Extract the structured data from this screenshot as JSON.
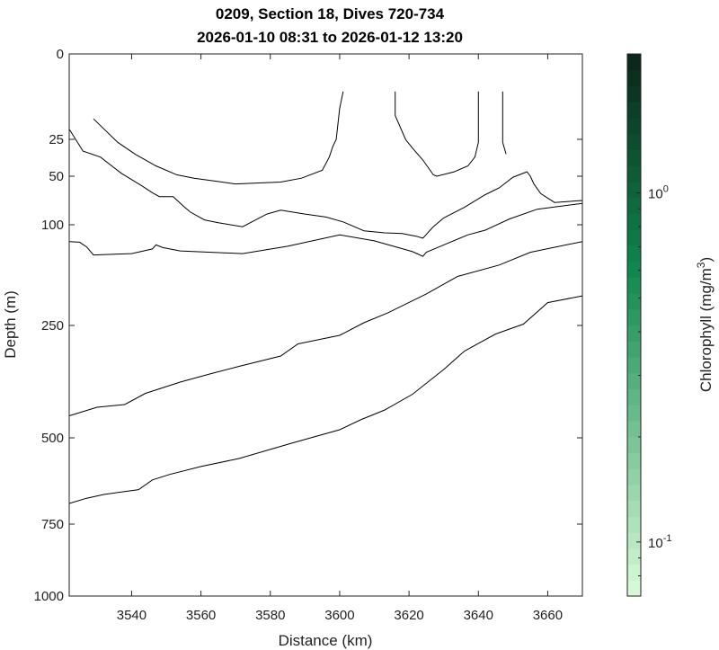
{
  "chart_data": {
    "type": "contour",
    "title": "0209, Section 18, Dives 720-734",
    "subtitle": "2026-01-10 08:31 to 2026-01-12 13:20",
    "xlabel": "Distance (km)",
    "ylabel": "Depth (m)",
    "xlim": [
      3522,
      3670
    ],
    "x_ticks": [
      "3540",
      "3560",
      "3580",
      "3600",
      "3620",
      "3640",
      "3660"
    ],
    "x_tick_values": [
      3540,
      3560,
      3580,
      3600,
      3620,
      3640,
      3660
    ],
    "y_ticks": [
      "0",
      "25",
      "50",
      "100",
      "250",
      "500",
      "750",
      "1000"
    ],
    "y_tick_values": [
      0,
      25,
      50,
      100,
      250,
      500,
      750,
      1000
    ],
    "y_scale": "stretched (nonlinear)",
    "colorbar": {
      "label": "Chlorophyll (mg/m",
      "label_sup": "3",
      "label_end": ")",
      "scale": "log",
      "range": [
        0.07,
        2.5
      ],
      "ticks": [
        {
          "value": 1,
          "base": "10",
          "exp": "0"
        },
        {
          "value": 0.1,
          "base": "10",
          "exp": "-1"
        }
      ],
      "color_low": "#dcfbd9",
      "color_mid": "#10884e",
      "color_high": "#0c2418"
    },
    "contours": [
      {
        "segments": [
          [
            [
              3529,
              19
            ],
            [
              3536,
              27
            ],
            [
              3541,
              35
            ],
            [
              3547,
              43
            ],
            [
              3553,
              49
            ],
            [
              3558,
              52
            ],
            [
              3564,
              55
            ],
            [
              3570,
              58
            ],
            [
              3576,
              57
            ],
            [
              3583,
              56
            ],
            [
              3589,
              52
            ],
            [
              3595,
              46
            ],
            [
              3597,
              37
            ],
            [
              3598,
              30
            ],
            [
              3599,
              25
            ],
            [
              3600,
              16
            ],
            [
              3601,
              11
            ]
          ],
          [
            [
              3616,
              11
            ],
            [
              3616,
              18
            ],
            [
              3619,
              25
            ],
            [
              3621,
              31
            ],
            [
              3624,
              39
            ],
            [
              3627,
              49
            ],
            [
              3628,
              50
            ],
            [
              3633,
              47
            ],
            [
              3637,
              43
            ],
            [
              3639,
              37
            ],
            [
              3640,
              27
            ],
            [
              3640,
              11
            ]
          ],
          [
            [
              3647,
              11
            ],
            [
              3647,
              27
            ],
            [
              3648,
              35
            ]
          ]
        ]
      },
      {
        "segments": [
          [
            [
              3522,
              22
            ],
            [
              3526,
              33
            ],
            [
              3531,
              37
            ],
            [
              3537,
              48
            ],
            [
              3543,
              60
            ],
            [
              3546,
              67
            ],
            [
              3548,
              71
            ],
            [
              3552,
              71
            ],
            [
              3555,
              81
            ],
            [
              3557,
              87
            ],
            [
              3561,
              95
            ],
            [
              3565,
              98
            ],
            [
              3572,
              103
            ],
            [
              3579,
              89
            ],
            [
              3583,
              85
            ],
            [
              3590,
              89
            ],
            [
              3596,
              92
            ],
            [
              3601,
              97
            ],
            [
              3607,
              109
            ],
            [
              3613,
              112
            ],
            [
              3618,
              113
            ],
            [
              3622,
              117
            ],
            [
              3624,
              120
            ],
            [
              3627,
              103
            ],
            [
              3630,
              93
            ],
            [
              3636,
              82
            ],
            [
              3642,
              69
            ],
            [
              3646,
              62
            ],
            [
              3650,
              51
            ],
            [
              3654,
              47
            ],
            [
              3655,
              50
            ],
            [
              3656,
              58
            ],
            [
              3658,
              68
            ],
            [
              3662,
              77
            ],
            [
              3670,
              75
            ]
          ]
        ]
      },
      {
        "segments": [
          [
            [
              3522,
              125
            ],
            [
              3525,
              126
            ],
            [
              3527,
              133
            ],
            [
              3529,
              145
            ],
            [
              3540,
              143
            ],
            [
              3546,
              136
            ],
            [
              3547,
              130
            ],
            [
              3549,
              134
            ],
            [
              3554,
              139
            ],
            [
              3572,
              143
            ],
            [
              3585,
              132
            ],
            [
              3600,
              115
            ],
            [
              3610,
              124
            ],
            [
              3621,
              140
            ],
            [
              3624,
              147
            ],
            [
              3625,
              141
            ],
            [
              3630,
              130
            ],
            [
              3637,
              115
            ],
            [
              3642,
              108
            ],
            [
              3649,
              94
            ],
            [
              3657,
              84
            ],
            [
              3670,
              78
            ]
          ]
        ]
      },
      {
        "segments": [
          [
            [
              3522,
              451
            ],
            [
              3530,
              432
            ],
            [
              3538,
              426
            ],
            [
              3544,
              401
            ],
            [
              3554,
              376
            ],
            [
              3563,
              357
            ],
            [
              3571,
              341
            ],
            [
              3583,
              318
            ],
            [
              3588,
              291
            ],
            [
              3600,
              272
            ],
            [
              3607,
              246
            ],
            [
              3614,
              231
            ],
            [
              3625,
              203
            ],
            [
              3634,
              177
            ],
            [
              3646,
              160
            ],
            [
              3655,
              141
            ],
            [
              3670,
              125
            ]
          ]
        ]
      },
      {
        "segments": [
          [
            [
              3522,
              690
            ],
            [
              3527,
              675
            ],
            [
              3532,
              664
            ],
            [
              3542,
              650
            ],
            [
              3546,
              622
            ],
            [
              3551,
              606
            ],
            [
              3560,
              583
            ],
            [
              3571,
              560
            ],
            [
              3586,
              516
            ],
            [
              3600,
              482
            ],
            [
              3606,
              460
            ],
            [
              3613,
              438
            ],
            [
              3621,
              403
            ],
            [
              3630,
              348
            ],
            [
              3636,
              307
            ],
            [
              3645,
              269
            ],
            [
              3653,
              248
            ],
            [
              3660,
              216
            ],
            [
              3670,
              206
            ]
          ]
        ]
      }
    ]
  }
}
